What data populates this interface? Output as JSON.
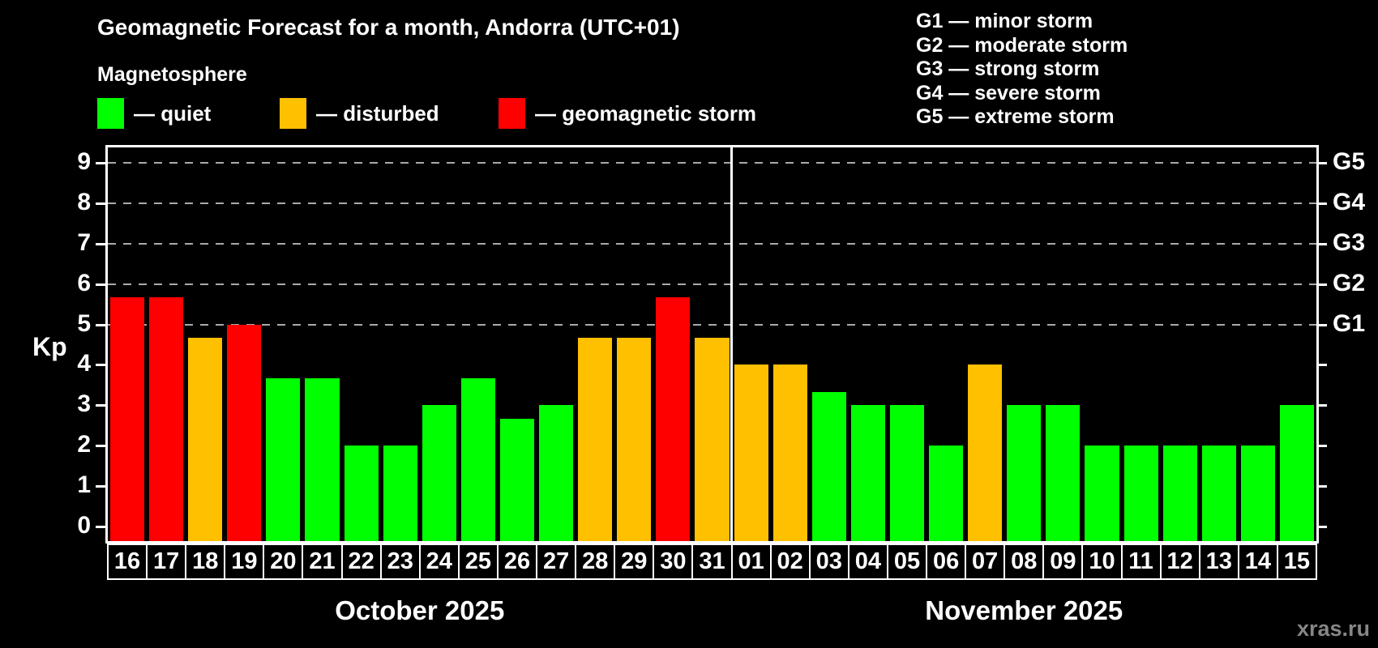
{
  "title": "Geomagnetic Forecast for a month, Andorra (UTC+01)",
  "subtitle": "Magnetosphere",
  "kp_axis_label": "Kp",
  "watermark": "xras.ru",
  "colors": {
    "quiet": "#00ff00",
    "disturbed": "#ffc000",
    "storm": "#ff0000",
    "background": "#000000",
    "grid": "#aaaaaa",
    "axis": "#ffffff",
    "watermark": "#868686"
  },
  "legend": [
    {
      "category": "quiet",
      "label": "— quiet"
    },
    {
      "category": "disturbed",
      "label": "— disturbed"
    },
    {
      "category": "storm",
      "label": "— geomagnetic storm"
    }
  ],
  "g_scale_legend": [
    "G1 — minor storm",
    "G2 — moderate storm",
    "G3 — strong storm",
    "G4 — severe storm",
    "G5 — extreme storm"
  ],
  "chart_data": {
    "type": "bar",
    "ylabel": "Kp",
    "ylim": [
      0,
      9
    ],
    "y_ticks": [
      0,
      1,
      2,
      3,
      4,
      5,
      6,
      7,
      8,
      9
    ],
    "gridlines_at": [
      5,
      6,
      7,
      8,
      9
    ],
    "right_axis_labels": [
      {
        "kp": 5,
        "label": "G1"
      },
      {
        "kp": 6,
        "label": "G2"
      },
      {
        "kp": 7,
        "label": "G3"
      },
      {
        "kp": 8,
        "label": "G4"
      },
      {
        "kp": 9,
        "label": "G5"
      }
    ],
    "legend_position": "top",
    "months": [
      {
        "label": "October 2025",
        "bars": [
          {
            "day": "16",
            "value": 5.67,
            "category": "storm"
          },
          {
            "day": "17",
            "value": 5.67,
            "category": "storm"
          },
          {
            "day": "18",
            "value": 4.67,
            "category": "disturbed"
          },
          {
            "day": "19",
            "value": 5.0,
            "category": "storm"
          },
          {
            "day": "20",
            "value": 3.67,
            "category": "quiet"
          },
          {
            "day": "21",
            "value": 3.67,
            "category": "quiet"
          },
          {
            "day": "22",
            "value": 2.0,
            "category": "quiet"
          },
          {
            "day": "23",
            "value": 2.0,
            "category": "quiet"
          },
          {
            "day": "24",
            "value": 3.0,
            "category": "quiet"
          },
          {
            "day": "25",
            "value": 3.67,
            "category": "quiet"
          },
          {
            "day": "26",
            "value": 2.67,
            "category": "quiet"
          },
          {
            "day": "27",
            "value": 3.0,
            "category": "quiet"
          },
          {
            "day": "28",
            "value": 4.67,
            "category": "disturbed"
          },
          {
            "day": "29",
            "value": 4.67,
            "category": "disturbed"
          },
          {
            "day": "30",
            "value": 5.67,
            "category": "storm"
          },
          {
            "day": "31",
            "value": 4.67,
            "category": "disturbed"
          }
        ]
      },
      {
        "label": "November 2025",
        "bars": [
          {
            "day": "01",
            "value": 4.0,
            "category": "disturbed"
          },
          {
            "day": "02",
            "value": 4.0,
            "category": "disturbed"
          },
          {
            "day": "03",
            "value": 3.33,
            "category": "quiet"
          },
          {
            "day": "04",
            "value": 3.0,
            "category": "quiet"
          },
          {
            "day": "05",
            "value": 3.0,
            "category": "quiet"
          },
          {
            "day": "06",
            "value": 2.0,
            "category": "quiet"
          },
          {
            "day": "07",
            "value": 4.0,
            "category": "disturbed"
          },
          {
            "day": "08",
            "value": 3.0,
            "category": "quiet"
          },
          {
            "day": "09",
            "value": 3.0,
            "category": "quiet"
          },
          {
            "day": "10",
            "value": 2.0,
            "category": "quiet"
          },
          {
            "day": "11",
            "value": 2.0,
            "category": "quiet"
          },
          {
            "day": "12",
            "value": 2.0,
            "category": "quiet"
          },
          {
            "day": "13",
            "value": 2.0,
            "category": "quiet"
          },
          {
            "day": "14",
            "value": 2.0,
            "category": "quiet"
          },
          {
            "day": "15",
            "value": 3.0,
            "category": "quiet"
          }
        ]
      }
    ]
  }
}
